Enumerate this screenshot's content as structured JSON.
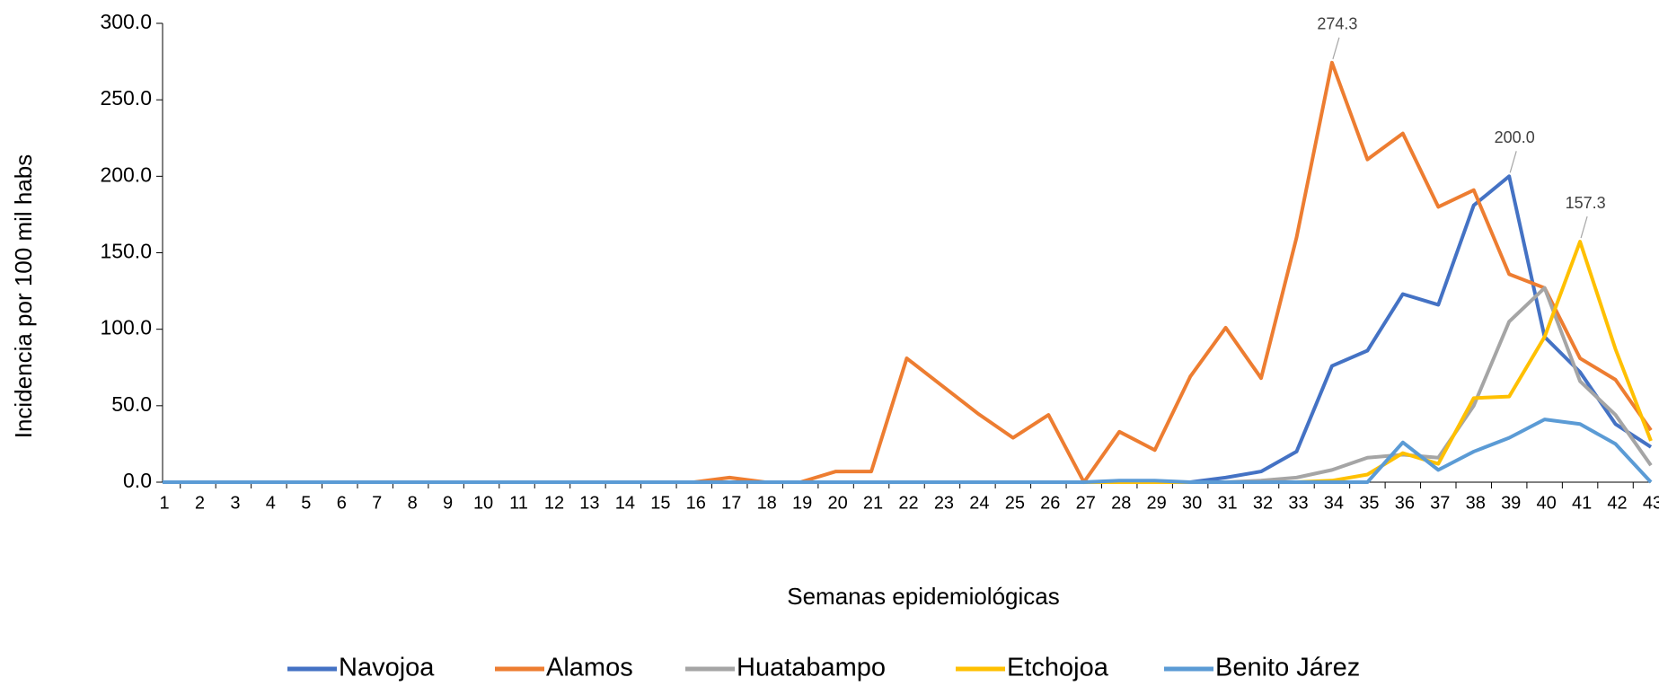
{
  "chart_data": {
    "type": "line",
    "y_label": "Incidencia por 100 mil habs",
    "x_label": "Semanas epidemiológicas",
    "categories": [
      "1",
      "2",
      "3",
      "4",
      "5",
      "6",
      "7",
      "8",
      "9",
      "10",
      "11",
      "12",
      "13",
      "14",
      "15",
      "16",
      "17",
      "18",
      "19",
      "20",
      "21",
      "22",
      "23",
      "24",
      "25",
      "26",
      "27",
      "28",
      "29",
      "30",
      "31",
      "32",
      "33",
      "34",
      "35",
      "36",
      "37",
      "38",
      "39",
      "40",
      "41",
      "42",
      "43"
    ],
    "ylim": [
      0,
      300
    ],
    "yticks": [
      {
        "value": 0,
        "label": "0.0"
      },
      {
        "value": 50,
        "label": "50.0"
      },
      {
        "value": 100,
        "label": "100.0"
      },
      {
        "value": 150,
        "label": "150.0"
      },
      {
        "value": 200,
        "label": "200.0"
      },
      {
        "value": 250,
        "label": "250.0"
      },
      {
        "value": 300,
        "label": "300.0"
      }
    ],
    "grid": false,
    "legend": "bottom",
    "series": [
      {
        "name": "Navojoa",
        "color": "#4472c4",
        "values": [
          0,
          0,
          0,
          0,
          0,
          0,
          0,
          0,
          0,
          0,
          0,
          0,
          0,
          0,
          0,
          0,
          0,
          0,
          0,
          0,
          0,
          0,
          0,
          0,
          0,
          0,
          0,
          0,
          0,
          0,
          3,
          7,
          20,
          76,
          86,
          123,
          116,
          181,
          200,
          95,
          72,
          38,
          23
        ],
        "value_labels": [
          null,
          null,
          null,
          null,
          null,
          null,
          null,
          null,
          null,
          null,
          null,
          null,
          null,
          null,
          null,
          null,
          null,
          null,
          null,
          null,
          null,
          null,
          null,
          null,
          null,
          null,
          null,
          null,
          null,
          null,
          null,
          null,
          null,
          null,
          null,
          null,
          null,
          null,
          "200.0",
          null,
          null,
          null,
          null
        ]
      },
      {
        "name": "Alamos",
        "color": "#ed7d31",
        "values": [
          0,
          0,
          0,
          0,
          0,
          0,
          0,
          0,
          0,
          0,
          0,
          0,
          0,
          0,
          0,
          0,
          3,
          0,
          0,
          7,
          7,
          81,
          63,
          45,
          29,
          44,
          0,
          33,
          21,
          69,
          101,
          68,
          160,
          274.3,
          211,
          228,
          180,
          191,
          136,
          127,
          81,
          67,
          34
        ],
        "value_labels": [
          null,
          null,
          null,
          null,
          null,
          null,
          null,
          null,
          null,
          null,
          null,
          null,
          null,
          null,
          null,
          null,
          null,
          null,
          null,
          null,
          null,
          null,
          null,
          null,
          null,
          null,
          null,
          null,
          null,
          null,
          null,
          null,
          null,
          "274.3",
          null,
          null,
          null,
          null,
          null,
          null,
          null,
          null,
          null
        ]
      },
      {
        "name": "Huatabampo",
        "color": "#a5a5a5",
        "values": [
          0,
          0,
          0,
          0,
          0,
          0,
          0,
          0,
          0,
          0,
          0,
          0,
          0,
          0,
          0,
          0,
          0,
          0,
          0,
          0,
          0,
          0,
          0,
          0,
          0,
          0,
          0,
          0,
          0,
          0,
          0,
          1,
          3,
          8,
          16,
          18,
          16,
          50,
          105,
          127,
          66,
          44,
          11
        ]
      },
      {
        "name": "Etchojoa",
        "color": "#ffc000",
        "values": [
          0,
          0,
          0,
          0,
          0,
          0,
          0,
          0,
          0,
          0,
          0,
          0,
          0,
          0,
          0,
          0,
          0,
          0,
          0,
          0,
          0,
          0,
          0,
          0,
          0,
          0,
          0,
          0,
          0,
          0,
          0,
          0,
          0,
          1,
          5,
          19,
          12,
          55,
          56,
          95,
          157.3,
          87,
          27
        ],
        "value_labels": [
          null,
          null,
          null,
          null,
          null,
          null,
          null,
          null,
          null,
          null,
          null,
          null,
          null,
          null,
          null,
          null,
          null,
          null,
          null,
          null,
          null,
          null,
          null,
          null,
          null,
          null,
          null,
          null,
          null,
          null,
          null,
          null,
          null,
          null,
          null,
          null,
          null,
          null,
          null,
          null,
          "157.3",
          null,
          null
        ]
      },
      {
        "name": "Benito Járez",
        "color": "#5b9bd5",
        "values": [
          0,
          0,
          0,
          0,
          0,
          0,
          0,
          0,
          0,
          0,
          0,
          0,
          0,
          0,
          0,
          0,
          0,
          0,
          0,
          0,
          0,
          0,
          0,
          0,
          0,
          0,
          0,
          1,
          1,
          0,
          0,
          0,
          0,
          0,
          0,
          26,
          8,
          20,
          29,
          41,
          38,
          25,
          0
        ]
      }
    ]
  }
}
